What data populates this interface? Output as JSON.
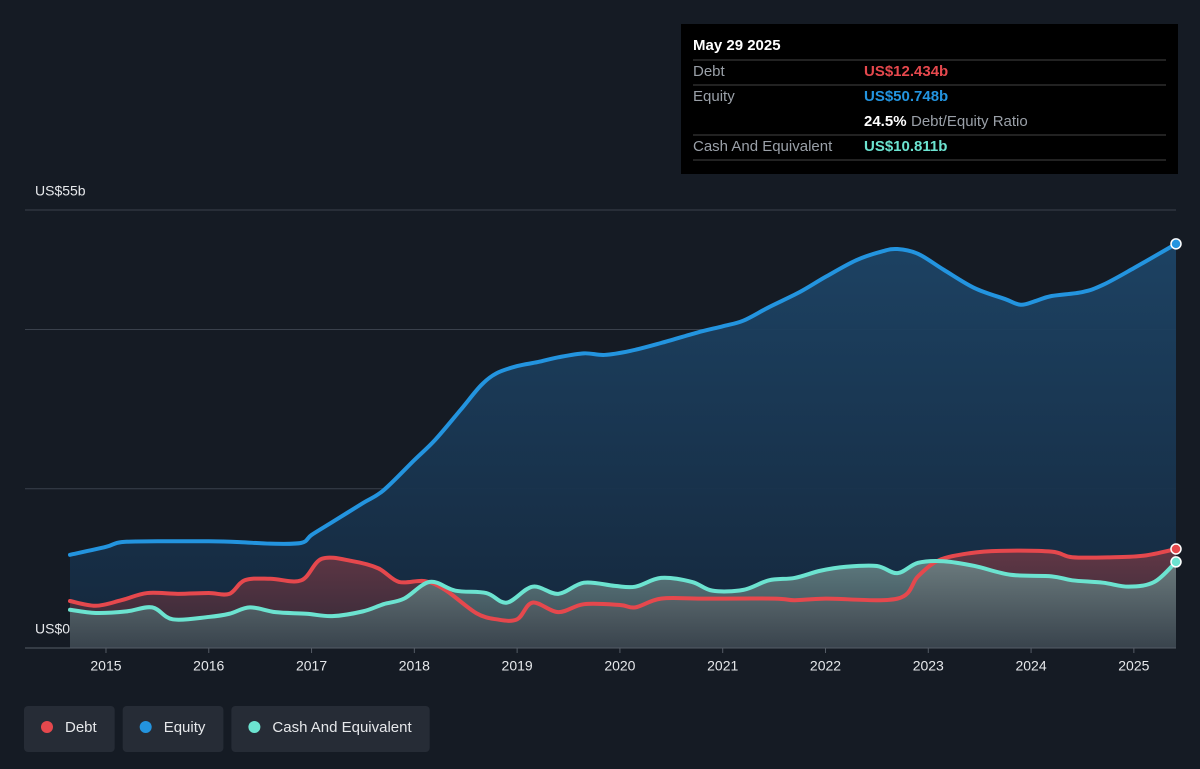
{
  "chart_data": {
    "type": "area-line",
    "xlim": [
      2014.65,
      2025.41
    ],
    "xticks": [
      2015,
      2016,
      2017,
      2018,
      2019,
      2020,
      2021,
      2022,
      2023,
      2024,
      2025
    ],
    "ylim": [
      0,
      55
    ],
    "yticks": [
      {
        "value": 0,
        "label": "US$0"
      },
      {
        "value": 55,
        "label": "US$55b"
      }
    ],
    "ygrid": [
      0,
      20,
      40,
      55
    ],
    "series": [
      {
        "name": "Debt",
        "color": "#e5484d",
        "x": [
          2014.65,
          2014.9,
          2015.15,
          2015.4,
          2015.7,
          2016.0,
          2016.2,
          2016.35,
          2016.6,
          2016.9,
          2017.1,
          2017.4,
          2017.65,
          2017.85,
          2018.1,
          2018.3,
          2018.6,
          2018.8,
          2019.0,
          2019.15,
          2019.4,
          2019.65,
          2020.0,
          2020.15,
          2020.4,
          2020.8,
          2021.5,
          2021.7,
          2022.0,
          2022.7,
          2022.9,
          2023.1,
          2023.4,
          2023.7,
          2024.2,
          2024.4,
          2024.8,
          2025.1,
          2025.41
        ],
        "values": [
          5.9,
          5.3,
          6.0,
          6.9,
          6.8,
          6.9,
          6.8,
          8.5,
          8.7,
          8.5,
          11.2,
          10.9,
          10.0,
          8.3,
          8.4,
          7.3,
          4.4,
          3.6,
          3.6,
          5.7,
          4.5,
          5.5,
          5.4,
          5.1,
          6.2,
          6.2,
          6.2,
          6.0,
          6.2,
          6.2,
          9.0,
          11.0,
          11.9,
          12.2,
          12.1,
          11.4,
          11.4,
          11.6,
          12.434
        ]
      },
      {
        "name": "Equity",
        "color": "#2394df",
        "x": [
          2014.65,
          2015.0,
          2015.15,
          2015.5,
          2016.0,
          2016.3,
          2016.6,
          2016.9,
          2017.0,
          2017.2,
          2017.5,
          2017.7,
          2018.0,
          2018.2,
          2018.45,
          2018.65,
          2018.8,
          2019.0,
          2019.2,
          2019.4,
          2019.65,
          2019.85,
          2020.1,
          2020.4,
          2020.75,
          2021.0,
          2021.2,
          2021.45,
          2021.75,
          2022.0,
          2022.3,
          2022.55,
          2022.7,
          2022.9,
          2023.15,
          2023.45,
          2023.75,
          2023.9,
          2024.05,
          2024.2,
          2024.5,
          2024.7,
          2025.0,
          2025.41
        ],
        "values": [
          11.7,
          12.7,
          13.3,
          13.4,
          13.4,
          13.3,
          13.1,
          13.2,
          14.2,
          15.8,
          18.2,
          19.8,
          23.6,
          26.1,
          29.9,
          33.0,
          34.5,
          35.4,
          35.9,
          36.5,
          37.0,
          36.8,
          37.3,
          38.3,
          39.6,
          40.4,
          41.1,
          42.8,
          44.7,
          46.6,
          48.7,
          49.8,
          50.1,
          49.5,
          47.5,
          45.2,
          43.8,
          43.1,
          43.6,
          44.2,
          44.7,
          45.6,
          47.7,
          50.748
        ]
      },
      {
        "name": "Cash And Equivalent",
        "color": "#6ce3d0",
        "x": [
          2014.65,
          2014.9,
          2015.2,
          2015.45,
          2015.65,
          2016.0,
          2016.2,
          2016.4,
          2016.65,
          2016.95,
          2017.2,
          2017.5,
          2017.7,
          2017.9,
          2018.15,
          2018.4,
          2018.7,
          2018.9,
          2019.15,
          2019.4,
          2019.65,
          2019.95,
          2020.15,
          2020.4,
          2020.7,
          2020.9,
          2021.2,
          2021.45,
          2021.7,
          2021.95,
          2022.2,
          2022.5,
          2022.7,
          2022.9,
          2023.15,
          2023.45,
          2023.8,
          2024.2,
          2024.4,
          2024.7,
          2024.95,
          2025.2,
          2025.41
        ],
        "values": [
          4.8,
          4.4,
          4.6,
          5.1,
          3.6,
          3.9,
          4.3,
          5.1,
          4.5,
          4.3,
          4.0,
          4.6,
          5.5,
          6.2,
          8.3,
          7.2,
          6.9,
          5.7,
          7.7,
          6.8,
          8.2,
          7.8,
          7.7,
          8.8,
          8.3,
          7.2,
          7.3,
          8.5,
          8.8,
          9.7,
          10.2,
          10.3,
          9.4,
          10.7,
          10.9,
          10.3,
          9.2,
          9.0,
          8.5,
          8.2,
          7.7,
          8.3,
          10.811
        ]
      }
    ],
    "tooltip": {
      "date": "May 29 2025",
      "rows": [
        {
          "label": "Debt",
          "value": "US$12.434b"
        },
        {
          "label": "Equity",
          "value": "US$50.748b"
        },
        {
          "value": "24.5%",
          "label": "Debt/Equity Ratio"
        },
        {
          "label": "Cash And Equivalent",
          "value": "US$10.811b"
        }
      ]
    }
  }
}
